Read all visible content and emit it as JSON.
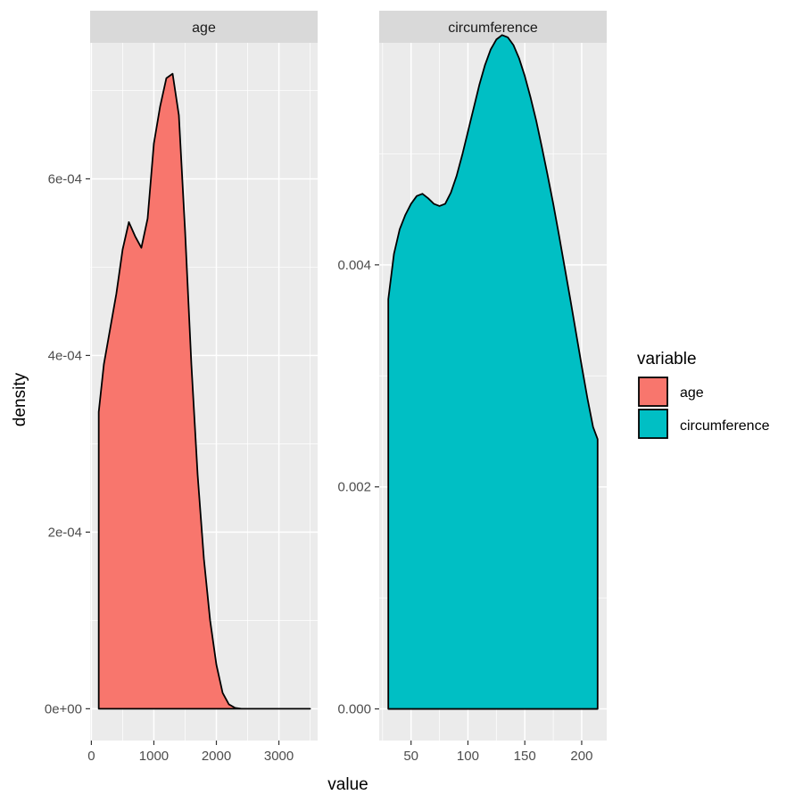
{
  "chart_data": [
    {
      "type": "area",
      "panel": "age",
      "strip_label": "age",
      "xlim": [
        -20,
        3620
      ],
      "ylim": [
        -3.6e-05,
        0.000754
      ],
      "x_ticks": [
        0,
        1000,
        2000,
        3000
      ],
      "x_tick_labels": [
        "0",
        "1000",
        "2000",
        "3000"
      ],
      "y_ticks": [
        0,
        0.0002,
        0.0004,
        0.0006
      ],
      "y_tick_labels": [
        "0e+00",
        "2e-04",
        "4e-04",
        "6e-04"
      ],
      "fill": "#F8766D",
      "series": [
        {
          "name": "age",
          "x": [
            118,
            200,
            300,
            400,
            500,
            600,
            700,
            800,
            900,
            1000,
            1100,
            1200,
            1300,
            1400,
            1500,
            1600,
            1700,
            1800,
            1900,
            2000,
            2100,
            2200,
            2300,
            2400,
            2600,
            3000,
            3500
          ],
          "y": [
            0.000336,
            0.00039,
            0.00043,
            0.00047,
            0.00052,
            0.000551,
            0.000535,
            0.000522,
            0.000555,
            0.00064,
            0.000682,
            0.000714,
            0.000719,
            0.000672,
            0.00054,
            0.00039,
            0.000265,
            0.00017,
            0.0001,
            5e-05,
            1.8e-05,
            5e-06,
            1e-06,
            0,
            0,
            0,
            0
          ]
        }
      ]
    },
    {
      "type": "area",
      "panel": "circumference",
      "strip_label": "circumference",
      "xlim": [
        22,
        222
      ],
      "ylim": [
        -0.000285,
        0.006
      ],
      "x_ticks": [
        50,
        100,
        150,
        200
      ],
      "x_tick_labels": [
        "50",
        "100",
        "150",
        "200"
      ],
      "y_ticks": [
        0,
        0.002,
        0.004
      ],
      "y_tick_labels": [
        "0.000",
        "0.002",
        "0.004"
      ],
      "fill": "#00BFC4",
      "series": [
        {
          "name": "circumference",
          "x": [
            30,
            35,
            40,
            45,
            50,
            55,
            60,
            65,
            70,
            75,
            80,
            85,
            90,
            95,
            100,
            105,
            110,
            115,
            120,
            125,
            130,
            135,
            140,
            145,
            150,
            155,
            160,
            165,
            170,
            175,
            180,
            185,
            190,
            195,
            200,
            205,
            210,
            214
          ],
          "y": [
            0.00369,
            0.0041,
            0.00432,
            0.00445,
            0.00455,
            0.00462,
            0.00464,
            0.0046,
            0.00455,
            0.00453,
            0.00455,
            0.00465,
            0.0048,
            0.00499,
            0.0052,
            0.00541,
            0.00562,
            0.0058,
            0.00594,
            0.00603,
            0.00607,
            0.00605,
            0.00598,
            0.00586,
            0.0057,
            0.00551,
            0.0053,
            0.00506,
            0.00481,
            0.00455,
            0.00427,
            0.00398,
            0.00369,
            0.00339,
            0.00309,
            0.0028,
            0.00254,
            0.00243
          ]
        }
      ]
    }
  ],
  "legend": {
    "title": "variable",
    "items": [
      {
        "label": "age",
        "color": "#F8766D"
      },
      {
        "label": "circumference",
        "color": "#00BFC4"
      }
    ]
  },
  "axes": {
    "xlabel": "value",
    "ylabel": "density"
  },
  "colors": {
    "panel_bg": "#EBEBEB",
    "strip_bg": "#D9D9D9",
    "grid_major": "#FFFFFF",
    "outline": "#000000"
  }
}
